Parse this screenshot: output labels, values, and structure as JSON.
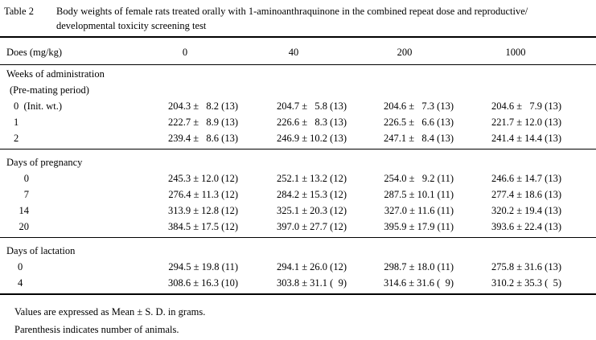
{
  "title": {
    "label": "Table 2",
    "lines": [
      "Body weights of female rats treated orally with 1-aminoanthraquinone in the combined repeat dose and reproductive/",
      "developmental toxicity screening test"
    ]
  },
  "header": [
    "Does (mg/kg)",
    "0",
    "40",
    "200",
    "1000"
  ],
  "sections": [
    {
      "title": "Weeks of administration",
      "subtitle": "(Pre-mating period)",
      "rows": [
        {
          "label": "0  (Init. wt.)",
          "cells": [
            "204.3 ±   8.2 (13)",
            "204.7 ±   5.8 (13)",
            "204.6 ±   7.3 (13)",
            "204.6 ±   7.9 (13)"
          ]
        },
        {
          "label": "1",
          "cells": [
            "222.7 ±   8.9 (13)",
            "226.6 ±   8.3 (13)",
            "226.5 ±   6.6 (13)",
            "221.7 ± 12.0 (13)"
          ]
        },
        {
          "label": "2",
          "cells": [
            "239.4 ±   8.6 (13)",
            "246.9 ± 10.2 (13)",
            "247.1 ±   8.4 (13)",
            "241.4 ± 14.4 (13)"
          ]
        }
      ]
    },
    {
      "title": "Days of pregnancy",
      "rows": [
        {
          "label": "0",
          "cells": [
            "245.3 ± 12.0 (12)",
            "252.1 ± 13.2 (12)",
            "254.0 ±   9.2 (11)",
            "246.6 ± 14.7 (13)"
          ]
        },
        {
          "label": "7",
          "cells": [
            "276.4 ± 11.3 (12)",
            "284.2 ± 15.3 (12)",
            "287.5 ± 10.1 (11)",
            "277.4 ± 18.6 (13)"
          ]
        },
        {
          "label": "14",
          "cells": [
            "313.9 ± 12.8 (12)",
            "325.1 ± 20.3 (12)",
            "327.0 ± 11.6 (11)",
            "320.2 ± 19.4 (13)"
          ]
        },
        {
          "label": "20",
          "cells": [
            "384.5 ± 17.5 (12)",
            "397.0 ± 27.7 (12)",
            "395.9 ± 17.9 (11)",
            "393.6 ± 22.4 (13)"
          ]
        }
      ]
    },
    {
      "title": "Days of lactation",
      "rows": [
        {
          "label": "0",
          "cells": [
            "294.5 ± 19.8 (11)",
            "294.1 ± 26.0 (12)",
            "298.7 ± 18.0 (11)",
            "275.8 ± 31.6 (13)"
          ]
        },
        {
          "label": "4",
          "cells": [
            "308.6 ± 16.3 (10)",
            "303.8 ± 31.1 (  9)",
            "314.6 ± 31.6 (  9)",
            "310.2 ± 35.3 (  5)"
          ]
        }
      ]
    }
  ],
  "notes": [
    "Values are expressed as Mean ± S. D. in grams.",
    "Parenthesis indicates number of animals."
  ]
}
